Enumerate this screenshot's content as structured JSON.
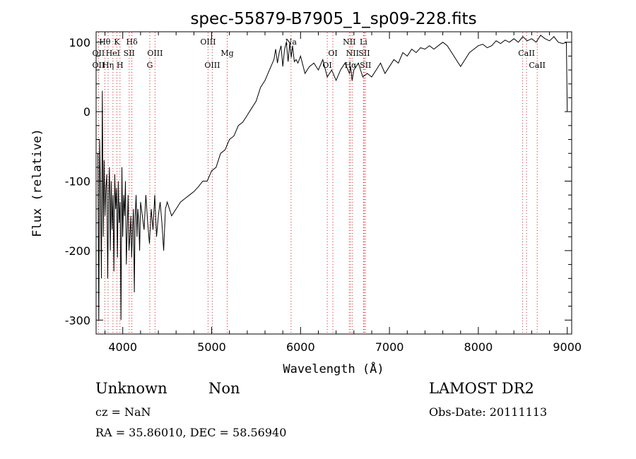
{
  "chart_data": {
    "type": "line",
    "title": "spec-55879-B7905_1_sp09-228.fits",
    "xlabel": "Wavelength (Å)",
    "ylabel": "Flux (relative)",
    "xlim": [
      3700,
      9050
    ],
    "ylim": [
      -320,
      115
    ],
    "x_ticks": [
      4000,
      5000,
      6000,
      7000,
      8000,
      9000
    ],
    "y_ticks": [
      -300,
      -200,
      -100,
      0,
      100
    ],
    "grid": false,
    "series": [
      {
        "x": [
          3720,
          3730,
          3740,
          3750,
          3760,
          3770,
          3780,
          3790,
          3800,
          3810,
          3820,
          3830,
          3840,
          3850,
          3860,
          3870,
          3880,
          3890,
          3900,
          3910,
          3920,
          3930,
          3940,
          3950,
          3960,
          3970,
          3980,
          3990,
          4000,
          4010,
          4020,
          4030,
          4040,
          4050,
          4060,
          4070,
          4080,
          4090,
          4100,
          4110,
          4120,
          4130,
          4140,
          4150,
          4160,
          4170,
          4180,
          4190,
          4200,
          4220,
          4240,
          4260,
          4280,
          4300,
          4320,
          4340,
          4360,
          4380,
          4400,
          4420,
          4440,
          4460,
          4480,
          4500,
          4550,
          4600,
          4650,
          4700,
          4750,
          4800,
          4850,
          4900,
          4950,
          5000,
          5050,
          5100,
          5150,
          5200,
          5250,
          5300,
          5350,
          5400,
          5450,
          5500,
          5550,
          5600,
          5650,
          5700,
          5720,
          5740,
          5760,
          5780,
          5800,
          5820,
          5840,
          5860,
          5880,
          5895,
          5910,
          5930,
          5950,
          5970,
          6000,
          6050,
          6100,
          6150,
          6200,
          6250,
          6300,
          6350,
          6400,
          6450,
          6500,
          6550,
          6563,
          6580,
          6600,
          6650,
          6700,
          6750,
          6800,
          6850,
          6900,
          6950,
          7000,
          7050,
          7100,
          7150,
          7200,
          7250,
          7300,
          7350,
          7400,
          7450,
          7500,
          7550,
          7600,
          7650,
          7700,
          7750,
          7800,
          7850,
          7900,
          7950,
          8000,
          8050,
          8100,
          8150,
          8200,
          8250,
          8300,
          8350,
          8400,
          8450,
          8500,
          8550,
          8600,
          8650,
          8700,
          8750,
          8800,
          8850,
          8900,
          8950,
          8990,
          9000
        ],
        "y": [
          -60,
          -300,
          -40,
          -120,
          -240,
          30,
          -180,
          -70,
          -150,
          -110,
          -90,
          -240,
          -130,
          -80,
          -200,
          -100,
          -170,
          -120,
          -230,
          -90,
          -140,
          -110,
          -210,
          -100,
          -160,
          -130,
          -300,
          -80,
          -180,
          -120,
          -150,
          -100,
          -220,
          -170,
          -120,
          -200,
          -180,
          -150,
          -210,
          -170,
          -140,
          -260,
          -150,
          -120,
          -180,
          -140,
          -160,
          -200,
          -130,
          -150,
          -170,
          -120,
          -160,
          -190,
          -140,
          -170,
          -120,
          -180,
          -150,
          -130,
          -160,
          -200,
          -140,
          -130,
          -150,
          -140,
          -130,
          -125,
          -120,
          -115,
          -108,
          -100,
          -100,
          -85,
          -80,
          -60,
          -55,
          -40,
          -35,
          -20,
          -15,
          -5,
          5,
          15,
          35,
          45,
          60,
          75,
          90,
          70,
          85,
          95,
          65,
          90,
          100,
          72,
          100,
          78,
          95,
          72,
          75,
          70,
          80,
          55,
          65,
          70,
          60,
          75,
          50,
          60,
          45,
          60,
          70,
          55,
          65,
          45,
          60,
          70,
          50,
          55,
          50,
          60,
          70,
          55,
          65,
          75,
          70,
          85,
          80,
          90,
          85,
          92,
          90,
          95,
          90,
          95,
          100,
          95,
          85,
          75,
          65,
          75,
          85,
          90,
          95,
          97,
          92,
          95,
          102,
          98,
          103,
          100,
          105,
          100,
          108,
          102,
          105,
          100,
          110,
          105,
          102,
          108,
          100,
          98,
          100,
          0
        ]
      }
    ],
    "annotations": [
      {
        "label": "Hθ",
        "x": 3798,
        "row": 0
      },
      {
        "label": "K",
        "x": 3934,
        "row": 0
      },
      {
        "label": "Hδ",
        "x": 4102,
        "row": 0
      },
      {
        "label": "OII",
        "x": 3727,
        "row": 1
      },
      {
        "label": "HeI",
        "x": 3889,
        "row": 1
      },
      {
        "label": "SII",
        "x": 4072,
        "row": 1
      },
      {
        "label": "OIII",
        "x": 4363,
        "row": 1
      },
      {
        "label": "OII",
        "x": 3727,
        "row": 2
      },
      {
        "label": "Hη",
        "x": 3835,
        "row": 2
      },
      {
        "label": "H",
        "x": 3969,
        "row": 2
      },
      {
        "label": "G",
        "x": 4304,
        "row": 2
      },
      {
        "label": "OIII",
        "x": 4959,
        "row": 0
      },
      {
        "label": "Mg",
        "x": 5175,
        "row": 1
      },
      {
        "label": "OIII",
        "x": 5007,
        "row": 2
      },
      {
        "label": "Na",
        "x": 5893,
        "row": 0
      },
      {
        "label": "NII",
        "x": 6548,
        "row": 0
      },
      {
        "label": "Li",
        "x": 6708,
        "row": 0
      },
      {
        "label": "OI",
        "x": 6363,
        "row": 1
      },
      {
        "label": "NII",
        "x": 6584,
        "row": 1
      },
      {
        "label": "SII",
        "x": 6717,
        "row": 1
      },
      {
        "label": "OI",
        "x": 6300,
        "row": 2
      },
      {
        "label": "Hα",
        "x": 6563,
        "row": 2
      },
      {
        "label": "SII",
        "x": 6731,
        "row": 2
      },
      {
        "label": "CaII",
        "x": 8542,
        "row": 1
      },
      {
        "label": "CaII",
        "x": 8662,
        "row": 2
      }
    ],
    "line_markers": [
      3727,
      3798,
      3835,
      3889,
      3934,
      3969,
      4072,
      4102,
      4304,
      4363,
      4959,
      5007,
      5175,
      5893,
      6300,
      6363,
      6548,
      6563,
      6584,
      6708,
      6717,
      6731,
      8498,
      8542,
      8662
    ]
  },
  "info": {
    "obj_class": "Unknown",
    "obj_subclass": "Non",
    "survey": "LAMOST DR2",
    "cz": "cz = NaN",
    "obs_date": "Obs-Date: 20111113",
    "radec": "RA =  35.86010, DEC =  58.56940"
  },
  "colors": {
    "spectrum": "#000000",
    "line_marker": "#d22222",
    "background": "#ffffff"
  }
}
